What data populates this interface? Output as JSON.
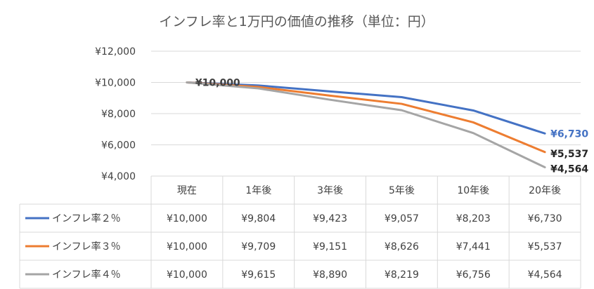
{
  "chart_data": {
    "type": "line",
    "title": "インフレ率と1万円の価値の推移（単位：円）",
    "categories": [
      "現在",
      "1年後",
      "3年後",
      "5年後",
      "10年後",
      "20年後"
    ],
    "ylim": [
      4000,
      12000
    ],
    "yticks": [
      4000,
      6000,
      8000,
      10000,
      12000
    ],
    "ytick_labels": [
      "¥4,000",
      "¥6,000",
      "¥8,000",
      "¥10,000",
      "¥12,000"
    ],
    "grid": true,
    "legend": "data-table",
    "series": [
      {
        "name": "インフレ率２％",
        "color": "#4472c4",
        "values": [
          10000,
          9804,
          9423,
          9057,
          8203,
          6730
        ],
        "cells": [
          "¥10,000",
          "¥9,804",
          "¥9,423",
          "¥9,057",
          "¥8,203",
          "¥6,730"
        ],
        "end_label": "¥6,730"
      },
      {
        "name": "インフレ率３％",
        "color": "#ed7d31",
        "values": [
          10000,
          9709,
          9151,
          8626,
          7441,
          5537
        ],
        "cells": [
          "¥10,000",
          "¥9,709",
          "¥9,151",
          "¥8,626",
          "¥7,441",
          "¥5,537"
        ],
        "end_label": "¥5,537"
      },
      {
        "name": "インフレ率４％",
        "color": "#a5a5a5",
        "values": [
          10000,
          9615,
          8890,
          8219,
          6756,
          4564
        ],
        "cells": [
          "¥10,000",
          "¥9,615",
          "¥8,890",
          "¥8,219",
          "¥6,756",
          "¥4,564"
        ],
        "end_label": "¥4,564"
      }
    ],
    "start_label": "¥10,000"
  }
}
